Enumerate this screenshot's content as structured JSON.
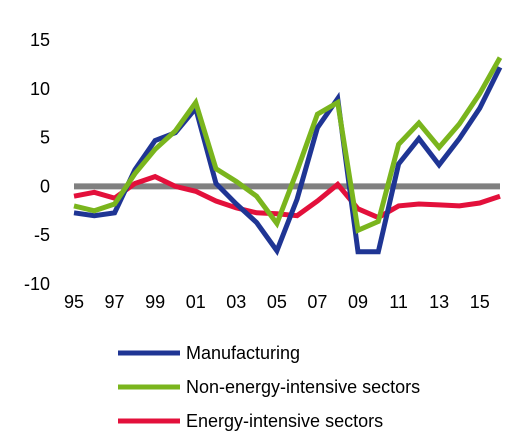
{
  "chart_data": {
    "type": "line",
    "title": "",
    "xlabel": "",
    "ylabel": "",
    "x": [
      "95",
      "96",
      "97",
      "98",
      "99",
      "00",
      "01",
      "02",
      "03",
      "04",
      "05",
      "06",
      "07",
      "08",
      "09",
      "10",
      "11",
      "12",
      "13",
      "14",
      "15",
      "16"
    ],
    "x_tick_labels": [
      "95",
      "97",
      "99",
      "01",
      "03",
      "05",
      "07",
      "09",
      "11",
      "13",
      "15"
    ],
    "y_ticks": [
      -10,
      -5,
      0,
      5,
      10,
      15
    ],
    "ylim": [
      -10,
      15
    ],
    "grid": false,
    "zero_line_color": "#808080",
    "legend_position": "bottom",
    "series": [
      {
        "name": "Manufacturing",
        "color": "#1f3594",
        "values": [
          -2.7,
          -3.0,
          -2.7,
          1.7,
          4.7,
          5.5,
          8.0,
          0.3,
          -1.8,
          -3.7,
          -6.6,
          -1.3,
          6.0,
          9.0,
          -6.7,
          -6.7,
          2.3,
          4.9,
          2.2,
          4.9,
          8.0,
          12.2
        ]
      },
      {
        "name": "Non-energy-intensive sectors",
        "color": "#7ab51d",
        "values": [
          -2.0,
          -2.5,
          -1.8,
          1.3,
          3.8,
          5.7,
          8.6,
          1.8,
          0.5,
          -1.0,
          -3.8,
          1.6,
          7.4,
          8.6,
          -4.5,
          -3.6,
          4.3,
          6.5,
          4.0,
          6.4,
          9.5,
          13.2
        ]
      },
      {
        "name": "Energy-intensive sectors",
        "color": "#e3103b",
        "values": [
          -1.0,
          -0.6,
          -1.2,
          0.3,
          1.0,
          0.0,
          -0.5,
          -1.5,
          -2.2,
          -2.7,
          -2.8,
          -3.0,
          -1.5,
          0.2,
          -2.3,
          -3.2,
          -2.0,
          -1.8,
          -1.9,
          -2.0,
          -1.7,
          -1.0
        ]
      }
    ]
  }
}
